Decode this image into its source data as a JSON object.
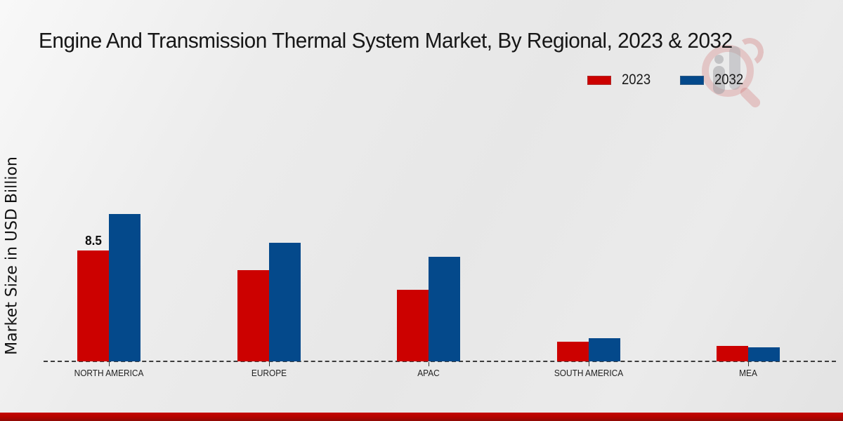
{
  "title": "Engine And Transmission Thermal System Market, By Regional, 2023 & 2032",
  "ylabel": "Market Size in USD Billion",
  "legend": {
    "items": [
      {
        "label": "2023",
        "color": "#cc0100"
      },
      {
        "label": "2032",
        "color": "#04498b"
      }
    ]
  },
  "watermark_icon": "market-research-magnifier-logo",
  "colors": {
    "series_2023": "#cc0100",
    "series_2032": "#04498b",
    "footer_stripe": "#b30300",
    "baseline": "#3c3c3c",
    "background": "#e9e9e9"
  },
  "chart_data": {
    "type": "bar",
    "title": "Engine And Transmission Thermal System Market, By Regional, 2023 & 2032",
    "xlabel": "",
    "ylabel": "Market Size in USD Billion",
    "categories": [
      "NORTH AMERICA",
      "EUROPE",
      "APAC",
      "SOUTH AMERICA",
      "MEA"
    ],
    "series": [
      {
        "name": "2023",
        "color": "#cc0100",
        "values": [
          8.5,
          7.0,
          5.5,
          1.5,
          1.2
        ],
        "point_labels": [
          "8.5",
          "",
          "",
          "",
          ""
        ]
      },
      {
        "name": "2032",
        "color": "#04498b",
        "values": [
          11.3,
          9.1,
          8.0,
          1.8,
          1.1
        ],
        "point_labels": [
          "",
          "",
          "",
          "",
          ""
        ]
      }
    ],
    "ylim": [
      0,
      12
    ],
    "grid": false,
    "y_axis_ticks_visible": false,
    "legend_position": "top-right",
    "baseline_style": "dashed"
  }
}
